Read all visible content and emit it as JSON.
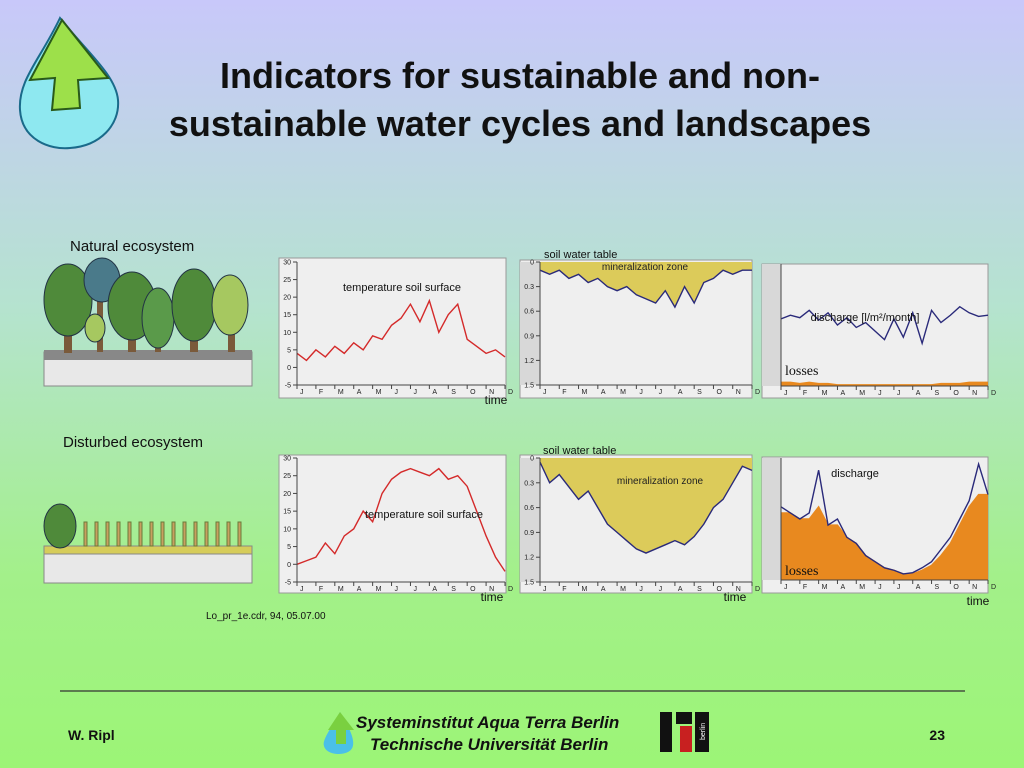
{
  "slide": {
    "title": "Indicators for sustainable and non-sustainable water cycles and landscapes",
    "natural_label": "Natural ecosystem",
    "disturbed_label": "Disturbed ecosystem",
    "file_note": "Lo_pr_1e.cdr, 94, 05.07.00",
    "author": "W. Ripl",
    "page_number": 23,
    "institute_line1": "Systeminstitut Aqua Terra Berlin",
    "institute_line2": "Technische Universität Berlin",
    "tu_logo_text": "berlin"
  },
  "chart_data": [
    {
      "type": "line",
      "xlabel": "time",
      "xlim": [
        0,
        11
      ],
      "ylim": [
        -5,
        30
      ],
      "yticks": [
        -5,
        0,
        5,
        10,
        15,
        20,
        25,
        30
      ],
      "xticks": [
        {
          "value": 0,
          "label": "J"
        },
        {
          "value": 1,
          "label": "F"
        },
        {
          "value": 2,
          "label": "M"
        },
        {
          "value": 3,
          "label": "A"
        },
        {
          "value": 4,
          "label": "M"
        },
        {
          "value": 5,
          "label": "J"
        },
        {
          "value": 6,
          "label": "J"
        },
        {
          "value": 7,
          "label": "A"
        },
        {
          "value": 8,
          "label": "S"
        },
        {
          "value": 9,
          "label": "O"
        },
        {
          "value": 10,
          "label": "N"
        },
        {
          "value": 11,
          "label": "D"
        }
      ],
      "x": [
        0,
        0.5,
        1,
        1.5,
        2,
        2.5,
        3,
        3.5,
        4,
        4.5,
        5,
        5.5,
        6,
        6.5,
        7,
        7.5,
        8,
        8.5,
        9,
        9.5,
        10,
        10.5,
        11
      ],
      "series": [
        {
          "name": "temperature soil surface",
          "color": "#d42a2a",
          "values": [
            4,
            2,
            5,
            3,
            6,
            4,
            7,
            5,
            9,
            8,
            12,
            14,
            18,
            13,
            19,
            10,
            15,
            18,
            8,
            6,
            4,
            5,
            3
          ]
        }
      ]
    },
    {
      "type": "line",
      "y_inverted": true,
      "annotation": "mineralization zone",
      "xlim": [
        0,
        11
      ],
      "ylim": [
        0,
        1.5
      ],
      "yticks": [
        0,
        0.3,
        0.6,
        0.9,
        1.2,
        1.5
      ],
      "xticks": [
        {
          "value": 0,
          "label": "J"
        },
        {
          "value": 1,
          "label": "F"
        },
        {
          "value": 2,
          "label": "M"
        },
        {
          "value": 3,
          "label": "A"
        },
        {
          "value": 4,
          "label": "M"
        },
        {
          "value": 5,
          "label": "J"
        },
        {
          "value": 6,
          "label": "J"
        },
        {
          "value": 7,
          "label": "A"
        },
        {
          "value": 8,
          "label": "S"
        },
        {
          "value": 9,
          "label": "O"
        },
        {
          "value": 10,
          "label": "N"
        },
        {
          "value": 11,
          "label": "D"
        }
      ],
      "x": [
        0,
        0.5,
        1,
        1.5,
        2,
        2.5,
        3,
        3.5,
        4,
        4.5,
        5,
        5.5,
        6,
        6.5,
        7,
        7.5,
        8,
        8.5,
        9,
        9.5,
        10,
        10.5,
        11
      ],
      "series": [
        {
          "name": "soil water table",
          "color": "#2a2a7a",
          "fill": "#dccb5a",
          "values": [
            0.1,
            0.15,
            0.1,
            0.2,
            0.15,
            0.25,
            0.2,
            0.3,
            0.35,
            0.3,
            0.4,
            0.45,
            0.5,
            0.35,
            0.55,
            0.3,
            0.5,
            0.25,
            0.2,
            0.1,
            0.15,
            0.1,
            0.1
          ]
        }
      ]
    },
    {
      "type": "line",
      "xlim": [
        0,
        11
      ],
      "ylim": [
        0,
        10
      ],
      "xticks": [
        {
          "value": 0,
          "label": "J"
        },
        {
          "value": 1,
          "label": "F"
        },
        {
          "value": 2,
          "label": "M"
        },
        {
          "value": 3,
          "label": "A"
        },
        {
          "value": 4,
          "label": "M"
        },
        {
          "value": 5,
          "label": "J"
        },
        {
          "value": 6,
          "label": "J"
        },
        {
          "value": 7,
          "label": "A"
        },
        {
          "value": 8,
          "label": "S"
        },
        {
          "value": 9,
          "label": "O"
        },
        {
          "value": 10,
          "label": "N"
        },
        {
          "value": 11,
          "label": "D"
        }
      ],
      "x": [
        0,
        0.5,
        1,
        1.5,
        2,
        2.5,
        3,
        3.5,
        4,
        4.5,
        5,
        5.5,
        6,
        6.5,
        7,
        7.5,
        8,
        8.5,
        9,
        9.5,
        10,
        10.5,
        11
      ],
      "series": [
        {
          "name": "discharge [l/m²/month]",
          "color": "#2a2a7a",
          "values": [
            5.5,
            5.8,
            5.6,
            6.2,
            5.4,
            6,
            5,
            5.6,
            4.8,
            5.2,
            4.5,
            3.8,
            5.5,
            4,
            6,
            3.5,
            6.2,
            5.2,
            5.8,
            6.5,
            6,
            5.7,
            5.8
          ]
        },
        {
          "name": "losses",
          "color": "#e8891f",
          "fill": "#e8891f",
          "values": [
            0.3,
            0.3,
            0.2,
            0.3,
            0.2,
            0.2,
            0.1,
            0.1,
            0.1,
            0.1,
            0.1,
            0.1,
            0.1,
            0.1,
            0.1,
            0.1,
            0.1,
            0.2,
            0.2,
            0.2,
            0.3,
            0.3,
            0.3
          ]
        }
      ]
    },
    {
      "type": "line",
      "xlabel": "time",
      "xlim": [
        0,
        11
      ],
      "ylim": [
        -5,
        30
      ],
      "yticks": [
        -5,
        0,
        5,
        10,
        15,
        20,
        25,
        30
      ],
      "xticks": [
        {
          "value": 0,
          "label": "J"
        },
        {
          "value": 1,
          "label": "F"
        },
        {
          "value": 2,
          "label": "M"
        },
        {
          "value": 3,
          "label": "A"
        },
        {
          "value": 4,
          "label": "M"
        },
        {
          "value": 5,
          "label": "J"
        },
        {
          "value": 6,
          "label": "J"
        },
        {
          "value": 7,
          "label": "A"
        },
        {
          "value": 8,
          "label": "S"
        },
        {
          "value": 9,
          "label": "O"
        },
        {
          "value": 10,
          "label": "N"
        },
        {
          "value": 11,
          "label": "D"
        }
      ],
      "x": [
        0,
        0.5,
        1,
        1.5,
        2,
        2.5,
        3,
        3.5,
        4,
        4.5,
        5,
        5.5,
        6,
        6.5,
        7,
        7.5,
        8,
        8.5,
        9,
        9.5,
        10,
        10.5,
        11
      ],
      "series": [
        {
          "name": "temperature soil surface",
          "color": "#d42a2a",
          "values": [
            0,
            1,
            2,
            6,
            3,
            8,
            10,
            15,
            12,
            20,
            24,
            26,
            27,
            26,
            25,
            27,
            24,
            25,
            22,
            15,
            8,
            2,
            -2
          ]
        }
      ]
    },
    {
      "type": "line",
      "y_inverted": true,
      "xlabel": "time",
      "annotation": "mineralization zone",
      "xlim": [
        0,
        11
      ],
      "ylim": [
        0,
        1.5
      ],
      "yticks": [
        0,
        0.3,
        0.6,
        0.9,
        1.2,
        1.5
      ],
      "xticks": [
        {
          "value": 0,
          "label": "J"
        },
        {
          "value": 1,
          "label": "F"
        },
        {
          "value": 2,
          "label": "M"
        },
        {
          "value": 3,
          "label": "A"
        },
        {
          "value": 4,
          "label": "M"
        },
        {
          "value": 5,
          "label": "J"
        },
        {
          "value": 6,
          "label": "J"
        },
        {
          "value": 7,
          "label": "A"
        },
        {
          "value": 8,
          "label": "S"
        },
        {
          "value": 9,
          "label": "O"
        },
        {
          "value": 10,
          "label": "N"
        },
        {
          "value": 11,
          "label": "D"
        }
      ],
      "x": [
        0,
        0.5,
        1,
        1.5,
        2,
        2.5,
        3,
        3.5,
        4,
        4.5,
        5,
        5.5,
        6,
        6.5,
        7,
        7.5,
        8,
        8.5,
        9,
        9.5,
        10,
        10.5,
        11
      ],
      "series": [
        {
          "name": "soil water table",
          "color": "#2a2a7a",
          "fill": "#dccb5a",
          "values": [
            0.05,
            0.3,
            0.2,
            0.35,
            0.5,
            0.4,
            0.6,
            0.8,
            0.9,
            1.0,
            1.1,
            1.15,
            1.1,
            1.05,
            1.0,
            1.05,
            0.95,
            0.8,
            0.6,
            0.5,
            0.3,
            0.1,
            0.15
          ]
        }
      ]
    },
    {
      "type": "line",
      "xlabel": "time",
      "xlim": [
        0,
        11
      ],
      "ylim": [
        0,
        10
      ],
      "xticks": [
        {
          "value": 0,
          "label": "J"
        },
        {
          "value": 1,
          "label": "F"
        },
        {
          "value": 2,
          "label": "M"
        },
        {
          "value": 3,
          "label": "A"
        },
        {
          "value": 4,
          "label": "M"
        },
        {
          "value": 5,
          "label": "J"
        },
        {
          "value": 6,
          "label": "J"
        },
        {
          "value": 7,
          "label": "A"
        },
        {
          "value": 8,
          "label": "S"
        },
        {
          "value": 9,
          "label": "O"
        },
        {
          "value": 10,
          "label": "N"
        },
        {
          "value": 11,
          "label": "D"
        }
      ],
      "x": [
        0,
        0.5,
        1,
        1.5,
        2,
        2.5,
        3,
        3.5,
        4,
        4.5,
        5,
        5.5,
        6,
        6.5,
        7,
        7.5,
        8,
        8.5,
        9,
        9.5,
        10,
        10.5,
        11
      ],
      "series": [
        {
          "name": "losses",
          "color": "#e8891f",
          "fill": "#e8891f",
          "values": [
            5.5,
            5.5,
            5,
            5,
            6,
            4.5,
            4.5,
            3.5,
            3,
            2,
            1.5,
            1,
            0.8,
            0.5,
            0.5,
            0.8,
            1.2,
            2,
            3,
            4.5,
            6,
            7,
            7
          ]
        },
        {
          "name": "discharge",
          "color": "#2a2a7a",
          "values": [
            6,
            5.5,
            5,
            5.5,
            9,
            4.5,
            5,
            3.5,
            3,
            2,
            1.5,
            1,
            0.8,
            0.5,
            0.6,
            1,
            1.5,
            2.5,
            3.5,
            5,
            6.5,
            9.5,
            7
          ]
        }
      ]
    }
  ]
}
